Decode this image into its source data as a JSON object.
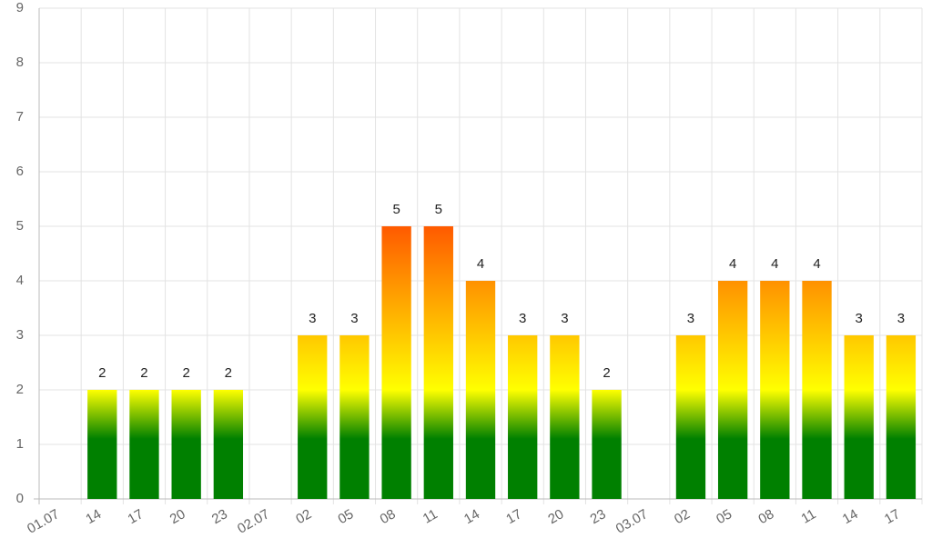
{
  "chart_data": {
    "type": "bar",
    "categories": [
      "01.07",
      "14",
      "17",
      "20",
      "23",
      "02.07",
      "02",
      "05",
      "08",
      "11",
      "14",
      "17",
      "20",
      "23",
      "03.07",
      "02",
      "05",
      "08",
      "11",
      "14",
      "17"
    ],
    "values": [
      null,
      2,
      2,
      2,
      2,
      null,
      3,
      3,
      5,
      5,
      4,
      3,
      3,
      2,
      null,
      3,
      4,
      4,
      4,
      3,
      3
    ],
    "gradient": [
      "#008000",
      "#ffff00",
      "#ff5a00"
    ],
    "ylim": [
      0,
      9
    ],
    "yticks": [
      0,
      1,
      2,
      3,
      4,
      5,
      6,
      7,
      8,
      9
    ],
    "grid": true
  }
}
